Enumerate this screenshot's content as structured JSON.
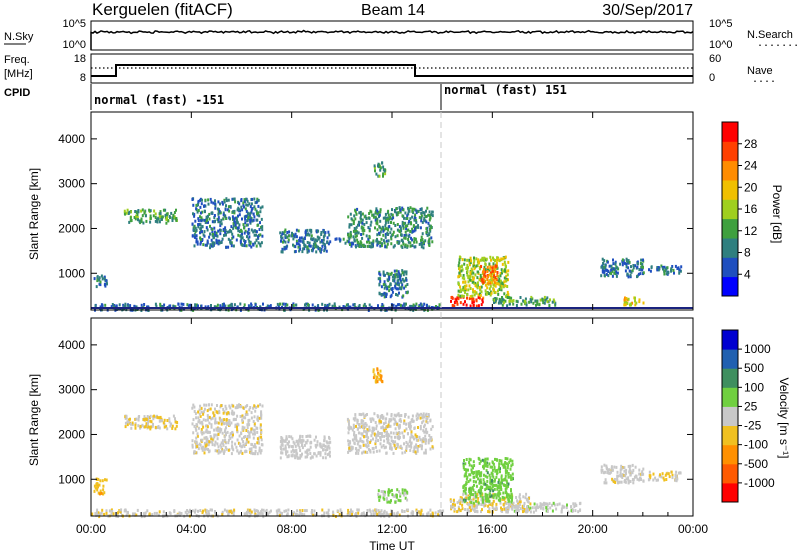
{
  "header": {
    "radar": "Kerguelen (fitACF)",
    "beam": "Beam 14",
    "date": "30/Sep/2017"
  },
  "strips": {
    "nsky": {
      "left_label": "N.Sky",
      "left_ticks": [
        "10^5",
        "10^0"
      ],
      "right_ticks": [
        "10^5",
        "10^0"
      ],
      "right_label": "N.Search",
      "right_legend": "........"
    },
    "freq": {
      "left_label_1": "Freq.",
      "left_label_2": "[MHz]",
      "left_ticks": [
        "18",
        "8"
      ],
      "right_ticks": [
        "60",
        "0"
      ],
      "right_label": "Nave",
      "right_legend": "...."
    },
    "cpid": {
      "label": "CPID",
      "segments": [
        {
          "text": "normal (fast) -151",
          "start_hour": 0,
          "end_hour": 14
        },
        {
          "text": "normal (fast) 151",
          "start_hour": 14,
          "end_hour": 24
        }
      ]
    }
  },
  "chart_data": [
    {
      "type": "heatmap",
      "title": "",
      "ylabel": "Slant Range [km]",
      "xlabel": "",
      "xlim": [
        0,
        24
      ],
      "ylim": [
        180,
        4600
      ],
      "yticks": [
        1000,
        2000,
        3000,
        4000
      ],
      "yticklabels": [
        "1000",
        "2000",
        "3000",
        "4000"
      ],
      "colorbar": {
        "label": "Power [dB]",
        "ticks": [
          "28",
          "24",
          "20",
          "16",
          "12",
          "8",
          "4"
        ],
        "range": [
          0,
          32
        ],
        "colors": [
          "#0000ff",
          "#1f4fbf",
          "#2f7f7f",
          "#3fa03f",
          "#9fcf1f",
          "#f0c000",
          "#ff8c00",
          "#ff4000",
          "#ff0000"
        ]
      },
      "patches": [
        {
          "x": [
            0.1,
            0.6
          ],
          "y": [
            700,
            1000
          ],
          "value": 8
        },
        {
          "x": [
            1.3,
            3.4
          ],
          "y": [
            2150,
            2450
          ],
          "value": 12
        },
        {
          "x": [
            4.0,
            6.8
          ],
          "y": [
            1600,
            2700
          ],
          "value": 8
        },
        {
          "x": [
            7.5,
            9.5
          ],
          "y": [
            1500,
            2000
          ],
          "value": 8
        },
        {
          "x": [
            9.7,
            10.6
          ],
          "y": [
            1700,
            1800
          ],
          "value": 8
        },
        {
          "x": [
            10.2,
            13.6
          ],
          "y": [
            1600,
            2500
          ],
          "value": 10
        },
        {
          "x": [
            11.2,
            11.7
          ],
          "y": [
            3200,
            3500
          ],
          "value": 12
        },
        {
          "x": [
            11.4,
            12.6
          ],
          "y": [
            500,
            1100
          ],
          "value": 8
        },
        {
          "x": [
            14.3,
            15.6
          ],
          "y": [
            300,
            500
          ],
          "value": 28
        },
        {
          "x": [
            14.6,
            16.6
          ],
          "y": [
            500,
            1400
          ],
          "value": 16
        },
        {
          "x": [
            15.5,
            16.2
          ],
          "y": [
            800,
            1200
          ],
          "value": 24
        },
        {
          "x": [
            16.0,
            18.5
          ],
          "y": [
            300,
            500
          ],
          "value": 12
        },
        {
          "x": [
            20.3,
            22.0
          ],
          "y": [
            950,
            1350
          ],
          "value": 8
        },
        {
          "x": [
            21.2,
            22.0
          ],
          "y": [
            320,
            500
          ],
          "value": 20
        },
        {
          "x": [
            22.2,
            23.5
          ],
          "y": [
            1000,
            1200
          ],
          "value": 8
        },
        {
          "x": [
            0.0,
            14.0
          ],
          "y": [
            200,
            350
          ],
          "value": 8
        }
      ]
    },
    {
      "type": "heatmap",
      "title": "",
      "ylabel": "Slant Range [km]",
      "xlabel": "Time UT",
      "xlim": [
        0,
        24
      ],
      "ylim": [
        180,
        4600
      ],
      "yticks": [
        1000,
        2000,
        3000,
        4000
      ],
      "yticklabels": [
        "1000",
        "2000",
        "3000",
        "4000"
      ],
      "xticks": [
        0,
        4,
        8,
        12,
        16,
        20,
        24
      ],
      "xticklabels": [
        "00:00",
        "04:00",
        "08:00",
        "12:00",
        "16:00",
        "20:00",
        "00:00"
      ],
      "colorbar": {
        "label": "Velocity [m s⁻¹]",
        "ticks": [
          "1000",
          "500",
          "100",
          "25",
          "-25",
          "-100",
          "-500",
          "-1000"
        ],
        "range": [
          -1200,
          1200
        ],
        "colors": [
          "#ff0000",
          "#ff5a00",
          "#ff9000",
          "#f0c020",
          "#c8c8c8",
          "#70d040",
          "#3f8f5f",
          "#2060b0",
          "#0000d0"
        ]
      },
      "patches": [
        {
          "x": [
            0.1,
            0.6
          ],
          "y": [
            700,
            1050
          ],
          "value": -300
        },
        {
          "x": [
            1.3,
            3.4
          ],
          "y": [
            2150,
            2450
          ],
          "value": -120
        },
        {
          "x": [
            4.0,
            6.8
          ],
          "y": [
            1600,
            2700
          ],
          "value": -60
        },
        {
          "x": [
            7.5,
            9.5
          ],
          "y": [
            1500,
            2000
          ],
          "value": 0
        },
        {
          "x": [
            10.2,
            13.6
          ],
          "y": [
            1600,
            2500
          ],
          "value": -30
        },
        {
          "x": [
            11.2,
            11.7
          ],
          "y": [
            3200,
            3500
          ],
          "value": -400
        },
        {
          "x": [
            11.4,
            12.6
          ],
          "y": [
            500,
            800
          ],
          "value": 150
        },
        {
          "x": [
            14.3,
            17.5
          ],
          "y": [
            300,
            700
          ],
          "value": -120
        },
        {
          "x": [
            14.8,
            16.8
          ],
          "y": [
            500,
            1500
          ],
          "value": 300
        },
        {
          "x": [
            16.5,
            19.5
          ],
          "y": [
            300,
            500
          ],
          "value": 40
        },
        {
          "x": [
            20.3,
            22.0
          ],
          "y": [
            950,
            1350
          ],
          "value": -20
        },
        {
          "x": [
            22.2,
            23.5
          ],
          "y": [
            1000,
            1200
          ],
          "value": -120
        },
        {
          "x": [
            0.0,
            14.0
          ],
          "y": [
            200,
            350
          ],
          "value": -60
        }
      ]
    }
  ]
}
